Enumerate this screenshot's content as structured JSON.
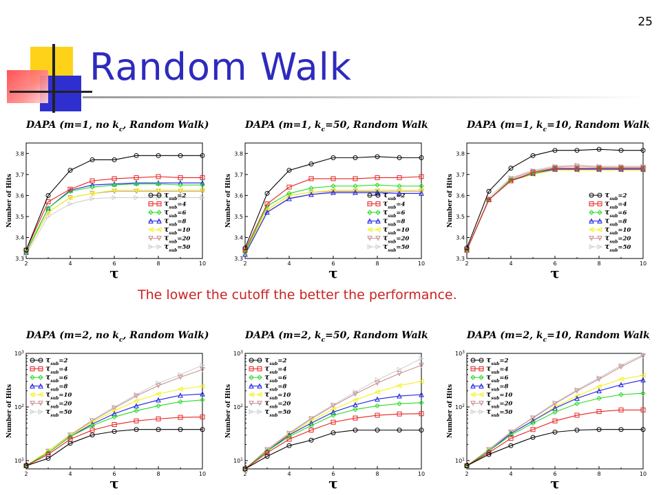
{
  "slide_number": "25",
  "title": "Random Walk",
  "caption": "The lower the cutoff the better the performance.",
  "colors": {
    "title": "#2d2bbd",
    "caption": "#cc2020",
    "series": [
      "#000000",
      "#e8201e",
      "#22dd22",
      "#1a1ae6",
      "#f2f21a",
      "#c89090",
      "#d0d0d0"
    ]
  },
  "icons": {
    "markers": [
      "circle",
      "square",
      "diamond",
      "triangle-up",
      "triangle-left",
      "triangle-down",
      "triangle-right"
    ]
  },
  "chart_data": [
    {
      "type": "line",
      "title": "DAPA (m=1, no k_c, Random Walk)",
      "xlabel": "τ",
      "ylabel": "Number of Hits",
      "scale": "linear",
      "ylim": [
        3.3,
        3.85
      ],
      "xlim": [
        2,
        10
      ],
      "yticks": [
        "3.3",
        "3.4",
        "3.5",
        "3.6",
        "3.7",
        "3.8"
      ],
      "xticks": [
        "2",
        "4",
        "6",
        "8",
        "10"
      ],
      "legend": true,
      "x": [
        2,
        3,
        4,
        5,
        6,
        7,
        8,
        9,
        10
      ],
      "series": [
        {
          "name": "τsub=2",
          "values": [
            3.34,
            3.6,
            3.72,
            3.77,
            3.77,
            3.79,
            3.79,
            3.79,
            3.79
          ]
        },
        {
          "name": "τsub=4",
          "values": [
            3.34,
            3.57,
            3.63,
            3.67,
            3.68,
            3.685,
            3.69,
            3.685,
            3.685
          ]
        },
        {
          "name": "τsub=6",
          "values": [
            3.33,
            3.54,
            3.62,
            3.64,
            3.65,
            3.655,
            3.655,
            3.65,
            3.65
          ]
        },
        {
          "name": "τsub=8",
          "values": [
            3.33,
            3.54,
            3.625,
            3.65,
            3.655,
            3.66,
            3.66,
            3.66,
            3.66
          ]
        },
        {
          "name": "τsub=10",
          "values": [
            3.33,
            3.52,
            3.59,
            3.61,
            3.625,
            3.625,
            3.625,
            3.625,
            3.625
          ]
        },
        {
          "name": "τsub=20",
          "values": [
            3.33,
            3.52,
            3.59,
            3.61,
            3.62,
            3.62,
            3.62,
            3.62,
            3.62
          ]
        },
        {
          "name": "τsub=50",
          "values": [
            3.32,
            3.5,
            3.56,
            3.585,
            3.59,
            3.59,
            3.59,
            3.59,
            3.59
          ]
        }
      ]
    },
    {
      "type": "line",
      "title": "DAPA (m=1, k_c=50, Random Walk)",
      "xlabel": "τ",
      "ylabel": "Number of Hits",
      "scale": "linear",
      "ylim": [
        3.3,
        3.85
      ],
      "xlim": [
        2,
        10
      ],
      "yticks": [
        "3.3",
        "3.4",
        "3.5",
        "3.6",
        "3.7",
        "3.8"
      ],
      "xticks": [
        "2",
        "4",
        "6",
        "8",
        "10"
      ],
      "legend": true,
      "x": [
        2,
        3,
        4,
        5,
        6,
        7,
        8,
        9,
        10
      ],
      "series": [
        {
          "name": "τsub=2",
          "values": [
            3.35,
            3.61,
            3.72,
            3.75,
            3.78,
            3.78,
            3.785,
            3.78,
            3.78
          ]
        },
        {
          "name": "τsub=4",
          "values": [
            3.34,
            3.56,
            3.64,
            3.68,
            3.68,
            3.68,
            3.685,
            3.685,
            3.69
          ]
        },
        {
          "name": "τsub=6",
          "values": [
            3.33,
            3.55,
            3.61,
            3.635,
            3.645,
            3.645,
            3.65,
            3.645,
            3.645
          ]
        },
        {
          "name": "τsub=8",
          "values": [
            3.32,
            3.52,
            3.585,
            3.605,
            3.615,
            3.615,
            3.615,
            3.61,
            3.61
          ]
        },
        {
          "name": "τsub=10",
          "values": [
            3.33,
            3.53,
            3.6,
            3.615,
            3.625,
            3.625,
            3.625,
            3.625,
            3.625
          ]
        },
        {
          "name": "τsub=20",
          "values": [
            3.33,
            3.53,
            3.6,
            3.615,
            3.62,
            3.62,
            3.62,
            3.62,
            3.62
          ]
        },
        {
          "name": "τsub=50",
          "values": [
            3.32,
            3.52,
            3.59,
            3.605,
            3.61,
            3.61,
            3.61,
            3.61,
            3.61
          ]
        }
      ]
    },
    {
      "type": "line",
      "title": "DAPA (m=1, k_c=10, Random Walk)",
      "xlabel": "τ",
      "ylabel": "Number of Hits",
      "scale": "linear",
      "ylim": [
        3.3,
        3.85
      ],
      "xlim": [
        2,
        10
      ],
      "yticks": [
        "3.3",
        "3.4",
        "3.5",
        "3.6",
        "3.7",
        "3.8"
      ],
      "xticks": [
        "2",
        "4",
        "6",
        "8",
        "10"
      ],
      "legend": true,
      "x": [
        2,
        3,
        4,
        5,
        6,
        7,
        8,
        9,
        10
      ],
      "series": [
        {
          "name": "τsub=2",
          "values": [
            3.35,
            3.62,
            3.73,
            3.79,
            3.815,
            3.815,
            3.82,
            3.815,
            3.815
          ]
        },
        {
          "name": "τsub=4",
          "values": [
            3.34,
            3.58,
            3.67,
            3.71,
            3.73,
            3.73,
            3.73,
            3.73,
            3.73
          ]
        },
        {
          "name": "τsub=6",
          "values": [
            3.34,
            3.58,
            3.675,
            3.705,
            3.73,
            3.73,
            3.73,
            3.73,
            3.73
          ]
        },
        {
          "name": "τsub=8",
          "values": [
            3.34,
            3.58,
            3.67,
            3.705,
            3.725,
            3.725,
            3.725,
            3.725,
            3.725
          ]
        },
        {
          "name": "τsub=10",
          "values": [
            3.34,
            3.58,
            3.67,
            3.7,
            3.72,
            3.72,
            3.72,
            3.72,
            3.72
          ]
        },
        {
          "name": "τsub=20",
          "values": [
            3.34,
            3.58,
            3.68,
            3.715,
            3.735,
            3.74,
            3.735,
            3.735,
            3.735
          ]
        },
        {
          "name": "τsub=50",
          "values": [
            3.34,
            3.59,
            3.685,
            3.72,
            3.74,
            3.745,
            3.74,
            3.74,
            3.74
          ]
        }
      ]
    },
    {
      "type": "line",
      "title": "DAPA (m=2, no k_c, Random Walk)",
      "xlabel": "τ",
      "ylabel": "Number of Hits",
      "scale": "log",
      "ylim": [
        7,
        1000
      ],
      "xlim": [
        2,
        10
      ],
      "yticks": [
        "10",
        "100",
        "1000"
      ],
      "xticks": [
        "2",
        "4",
        "6",
        "8",
        "10"
      ],
      "legend": true,
      "x": [
        2,
        3,
        4,
        5,
        6,
        7,
        8,
        9,
        10
      ],
      "series": [
        {
          "name": "τsub=2",
          "values": [
            8,
            11,
            21,
            30,
            35,
            38,
            38,
            38,
            38
          ]
        },
        {
          "name": "τsub=4",
          "values": [
            8,
            13,
            25,
            37,
            47,
            55,
            60,
            64,
            65
          ]
        },
        {
          "name": "τsub=6",
          "values": [
            8,
            14,
            28,
            45,
            65,
            85,
            105,
            125,
            135
          ]
        },
        {
          "name": "τsub=8",
          "values": [
            8,
            14,
            28,
            48,
            75,
            105,
            135,
            165,
            175
          ]
        },
        {
          "name": "τsub=10",
          "values": [
            8,
            15,
            29,
            52,
            85,
            130,
            175,
            215,
            245
          ]
        },
        {
          "name": "τsub=20",
          "values": [
            8,
            15,
            30,
            55,
            95,
            160,
            250,
            360,
            500
          ]
        },
        {
          "name": "τsub=50",
          "values": [
            8,
            15,
            30,
            57,
            100,
            170,
            280,
            400,
            600
          ]
        }
      ]
    },
    {
      "type": "line",
      "title": "DAPA (m=2, k_c=50, Random Walk)",
      "xlabel": "τ",
      "ylabel": "Number of Hits",
      "scale": "log",
      "ylim": [
        7,
        1000
      ],
      "xlim": [
        2,
        10
      ],
      "yticks": [
        "10",
        "100",
        "1000"
      ],
      "xticks": [
        "2",
        "4",
        "6",
        "8",
        "10"
      ],
      "legend": true,
      "x": [
        2,
        3,
        4,
        5,
        6,
        7,
        8,
        9,
        10
      ],
      "series": [
        {
          "name": "τsub=2",
          "values": [
            7,
            12,
            19,
            24,
            33,
            37,
            37,
            37,
            37
          ]
        },
        {
          "name": "τsub=4",
          "values": [
            7,
            14,
            25,
            37,
            52,
            62,
            70,
            74,
            75
          ]
        },
        {
          "name": "τsub=6",
          "values": [
            7,
            15,
            28,
            45,
            70,
            90,
            105,
            115,
            120
          ]
        },
        {
          "name": "τsub=8",
          "values": [
            7,
            15,
            30,
            50,
            80,
            110,
            140,
            160,
            170
          ]
        },
        {
          "name": "τsub=10",
          "values": [
            7,
            15,
            31,
            55,
            90,
            135,
            190,
            250,
            300
          ]
        },
        {
          "name": "τsub=20",
          "values": [
            7,
            16,
            32,
            60,
            105,
            175,
            280,
            420,
            600
          ]
        },
        {
          "name": "τsub=50",
          "values": [
            7,
            16,
            33,
            62,
            110,
            190,
            320,
            500,
            800
          ]
        }
      ]
    },
    {
      "type": "line",
      "title": "DAPA (m=2, k_c=10, Random Walk)",
      "xlabel": "τ",
      "ylabel": "Number of Hits",
      "scale": "log",
      "ylim": [
        7,
        1000
      ],
      "xlim": [
        2,
        10
      ],
      "yticks": [
        "10",
        "100",
        "1000"
      ],
      "xticks": [
        "2",
        "4",
        "6",
        "8",
        "10"
      ],
      "legend": true,
      "x": [
        2,
        3,
        4,
        5,
        6,
        7,
        8,
        9,
        10
      ],
      "series": [
        {
          "name": "τsub=2",
          "values": [
            8,
            13,
            19,
            27,
            34,
            37,
            38,
            38,
            38
          ]
        },
        {
          "name": "τsub=4",
          "values": [
            8,
            14,
            26,
            38,
            55,
            70,
            82,
            88,
            88
          ]
        },
        {
          "name": "τsub=6",
          "values": [
            8,
            15,
            30,
            50,
            80,
            115,
            145,
            170,
            180
          ]
        },
        {
          "name": "τsub=8",
          "values": [
            8,
            15,
            32,
            55,
            95,
            145,
            200,
            260,
            320
          ]
        },
        {
          "name": "τsub=10",
          "values": [
            8,
            15,
            32,
            55,
            100,
            160,
            240,
            330,
            390
          ]
        },
        {
          "name": "τsub=20",
          "values": [
            8,
            16,
            34,
            62,
            115,
            200,
            330,
            560,
            900
          ]
        },
        {
          "name": "τsub=50",
          "values": [
            8,
            16,
            34,
            64,
            120,
            210,
            350,
            600,
            950
          ]
        }
      ]
    }
  ]
}
